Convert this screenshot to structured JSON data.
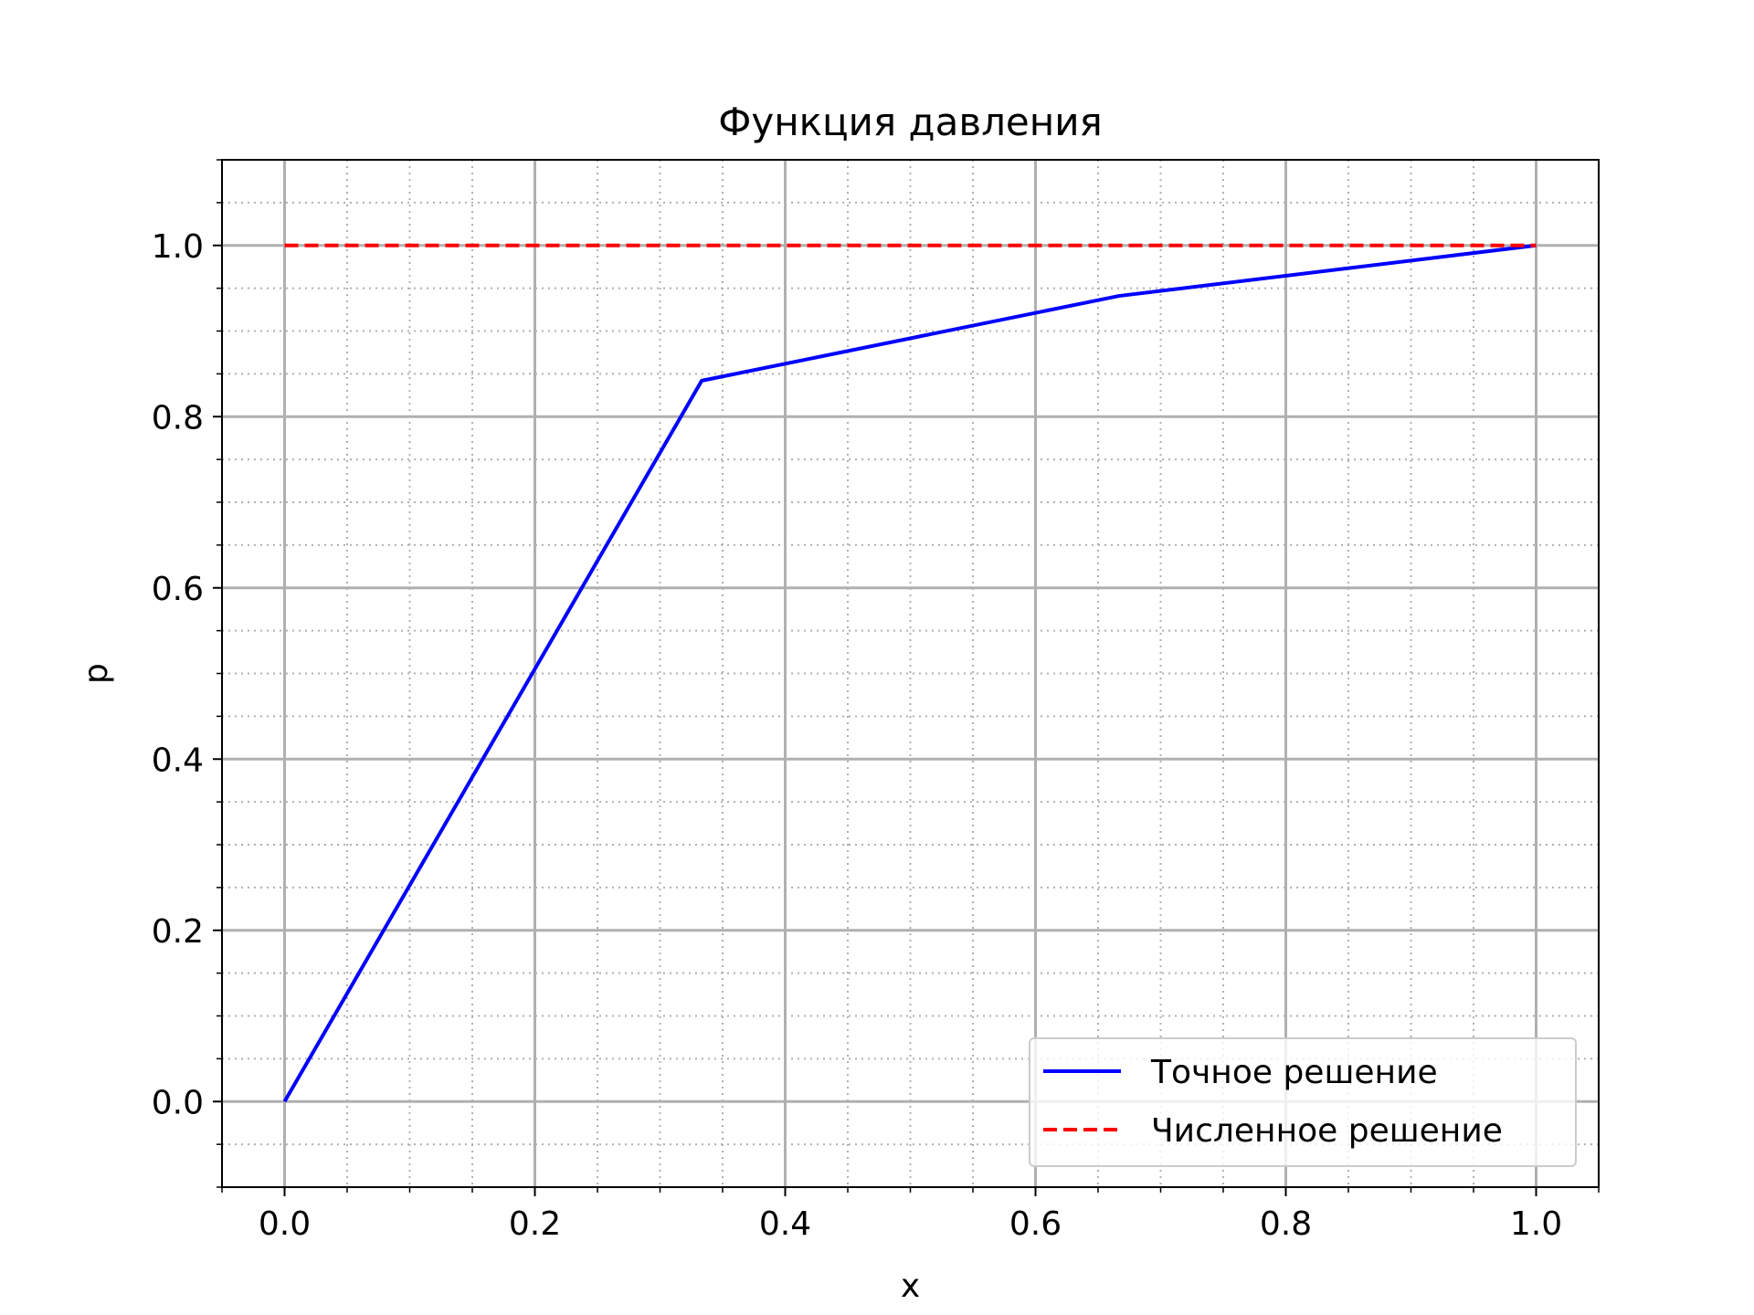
{
  "chart_data": {
    "type": "line",
    "title": "Функция давления",
    "xlabel": "x",
    "ylabel": "p",
    "xlim": [
      -0.05,
      1.05
    ],
    "ylim": [
      -0.1,
      1.1
    ],
    "x_ticks": [
      0.0,
      0.2,
      0.4,
      0.6,
      0.8,
      1.0
    ],
    "x_tick_labels": [
      "0.0",
      "0.2",
      "0.4",
      "0.6",
      "0.8",
      "1.0"
    ],
    "y_ticks": [
      0.0,
      0.2,
      0.4,
      0.6,
      0.8,
      1.0
    ],
    "y_tick_labels": [
      "0.0",
      "0.2",
      "0.4",
      "0.6",
      "0.8",
      "1.0"
    ],
    "x_minor_step": 0.05,
    "y_minor_step": 0.05,
    "grid": {
      "major": true,
      "minor": true
    },
    "legend_position": "lower-right",
    "series": [
      {
        "name": "Точное решение",
        "color": "#0000ff",
        "line_style": "solid",
        "x": [
          0.0,
          0.3333,
          0.6667,
          1.0
        ],
        "y": [
          0.0,
          0.842,
          0.941,
          1.0
        ]
      },
      {
        "name": "Численное решение",
        "color": "#ff0000",
        "line_style": "dashed",
        "x": [
          0.0,
          1.0
        ],
        "y": [
          1.0,
          1.0
        ]
      }
    ]
  }
}
